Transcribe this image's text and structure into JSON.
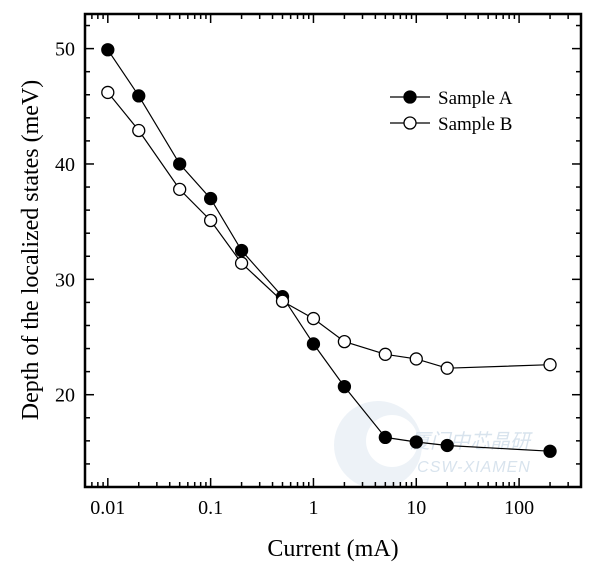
{
  "chart_data": {
    "type": "scatter",
    "x_scale": "log",
    "xlabel": "Current (mA)",
    "ylabel": "Depth of the localized states (meV)",
    "xlim": [
      0.006,
      400
    ],
    "ylim": [
      12,
      53
    ],
    "x_ticks": [
      {
        "value": 0.01,
        "label": "0.01"
      },
      {
        "value": 0.1,
        "label": "0.1"
      },
      {
        "value": 1,
        "label": "1"
      },
      {
        "value": 10,
        "label": "10"
      },
      {
        "value": 100,
        "label": "100"
      }
    ],
    "y_ticks": [
      {
        "value": 20,
        "label": "20"
      },
      {
        "value": 30,
        "label": "30"
      },
      {
        "value": 40,
        "label": "40"
      },
      {
        "value": 50,
        "label": "50"
      }
    ],
    "grid": false,
    "legend_position": "top-right",
    "series": [
      {
        "name": "Sample A",
        "marker": "filled-circle",
        "color": "#000000",
        "x": [
          0.01,
          0.02,
          0.05,
          0.1,
          0.2,
          0.5,
          1,
          2,
          5,
          10,
          20,
          200
        ],
        "y": [
          49.9,
          45.9,
          40.0,
          37.0,
          32.5,
          28.5,
          24.4,
          20.7,
          16.3,
          15.9,
          15.6,
          15.1
        ]
      },
      {
        "name": "Sample B",
        "marker": "open-circle",
        "color": "#000000",
        "x": [
          0.01,
          0.02,
          0.05,
          0.1,
          0.2,
          0.5,
          1,
          2,
          5,
          10,
          20,
          200
        ],
        "y": [
          46.2,
          42.9,
          37.8,
          35.1,
          31.4,
          28.1,
          26.6,
          24.6,
          23.5,
          23.1,
          22.3,
          22.6
        ]
      }
    ]
  },
  "watermark": {
    "line1": "厦门中芯晶研",
    "line2": "CSW-XIAMEN"
  }
}
